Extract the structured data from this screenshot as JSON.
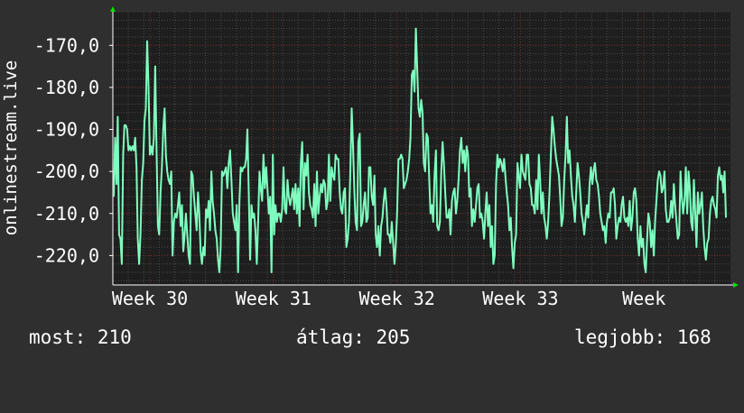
{
  "chart_data": {
    "type": "line",
    "ylabel": "onlinestream.live",
    "ylim": [
      -227,
      -162
    ],
    "yticks": [
      -170,
      -180,
      -190,
      -200,
      -210,
      -220
    ],
    "ytick_labels": [
      "-170,0",
      "-180,0",
      "-190,0",
      "-200,0",
      "-210,0",
      "-220,0"
    ],
    "xticks": [
      {
        "label": "Week 30",
        "at": 0.06
      },
      {
        "label": "Week 31",
        "at": 0.26
      },
      {
        "label": "Week 32",
        "at": 0.46
      },
      {
        "label": "Week 33",
        "at": 0.66
      },
      {
        "label": "Week",
        "at": 0.86
      }
    ],
    "grid": true,
    "series": [
      {
        "color": "#7fffbf",
        "values": [
          -206,
          -192,
          -203,
          -187,
          -215,
          -216,
          -222,
          -196,
          -189,
          -189,
          -190,
          -195,
          -194,
          -195,
          -194,
          -195,
          -192,
          -199,
          -216,
          -222,
          -215,
          -202,
          -198,
          -188,
          -185,
          -169,
          -180,
          -196,
          -194,
          -196,
          -192,
          -175,
          -195,
          -213,
          -215,
          -205,
          -199,
          -190,
          -185,
          -196,
          -200,
          -202,
          -203,
          -200,
          -220,
          -212,
          -210,
          -211,
          -208,
          -205,
          -213,
          -208,
          -219,
          -215,
          -210,
          -215,
          -220,
          -222,
          -200,
          -201,
          -206,
          -210,
          -214,
          -205,
          -210,
          -219,
          -222,
          -218,
          -220,
          -209,
          -211,
          -207,
          -214,
          -200,
          -207,
          -210,
          -214,
          -216,
          -221,
          -224,
          -218,
          -200,
          -201,
          -200,
          -199,
          -204,
          -198,
          -195,
          -202,
          -210,
          -212,
          -214,
          -208,
          -224,
          -207,
          -199,
          -200,
          -199,
          -199,
          -197,
          -190,
          -205,
          -221,
          -208,
          -211,
          -210,
          -214,
          -222,
          -212,
          -200,
          -204,
          -207,
          -196,
          -204,
          -199,
          -204,
          -210,
          -206,
          -224,
          -196,
          -215,
          -208,
          -212,
          -210,
          -210,
          -212,
          -209,
          -199,
          -209,
          -210,
          -202,
          -206,
          -208,
          -206,
          -204,
          -209,
          -203,
          -210,
          -204,
          -213,
          -198,
          -193,
          -209,
          -198,
          -201,
          -196,
          -205,
          -208,
          -209,
          -211,
          -203,
          -213,
          -200,
          -210,
          -206,
          -203,
          -205,
          -202,
          -203,
          -209,
          -207,
          -196,
          -207,
          -199,
          -201,
          -202,
          -196,
          -197,
          -197,
          -205,
          -209,
          -210,
          -205,
          -204,
          -218,
          -216,
          -212,
          -200,
          -185,
          -194,
          -205,
          -212,
          -214,
          -193,
          -191,
          -213,
          -212,
          -208,
          -205,
          -212,
          -211,
          -199,
          -199,
          -206,
          -208,
          -201,
          -215,
          -218,
          -213,
          -220,
          -213,
          -211,
          -207,
          -204,
          -208,
          -215,
          -215,
          -217,
          -212,
          -217,
          -222,
          -217,
          -210,
          -197,
          -197,
          -196,
          -197,
          -204,
          -203,
          -202,
          -200,
          -197,
          -192,
          -177,
          -176,
          -181,
          -166,
          -175,
          -185,
          -187,
          -183,
          -186,
          -198,
          -200,
          -191,
          -192,
          -202,
          -210,
          -208,
          -212,
          -201,
          -195,
          -213,
          -214,
          -212,
          -200,
          -193,
          -198,
          -205,
          -211,
          -211,
          -209,
          -215,
          -207,
          -205,
          -204,
          -210,
          -207,
          -202,
          -195,
          -192,
          -198,
          -195,
          -200,
          -194,
          -196,
          -206,
          -204,
          -213,
          -209,
          -212,
          -208,
          -204,
          -203,
          -211,
          -210,
          -212,
          -216,
          -210,
          -205,
          -213,
          -208,
          -218,
          -213,
          -222,
          -220,
          -203,
          -196,
          -199,
          -197,
          -198,
          -200,
          -197,
          -201,
          -205,
          -208,
          -214,
          -211,
          -218,
          -223,
          -217,
          -215,
          -198,
          -201,
          -204,
          -196,
          -200,
          -201,
          -202,
          -196,
          -196,
          -203,
          -204,
          -208,
          -208,
          -210,
          -202,
          -209,
          -196,
          -202,
          -210,
          -205,
          -211,
          -213,
          -216,
          -212,
          -205,
          -196,
          -187,
          -190,
          -194,
          -197,
          -199,
          -201,
          -206,
          -213,
          -211,
          -202,
          -196,
          -187,
          -198,
          -195,
          -201,
          -206,
          -208,
          -212,
          -205,
          -198,
          -201,
          -205,
          -210,
          -212,
          -215,
          -211,
          -208,
          -211,
          -203,
          -199,
          -203,
          -200,
          -198,
          -202,
          -203,
          -206,
          -210,
          -212,
          -214,
          -213,
          -217,
          -212,
          -210,
          -211,
          -205,
          -205,
          -204,
          -208,
          -216,
          -213,
          -211,
          -212,
          -208,
          -206,
          -211,
          -212,
          -211,
          -213,
          -207,
          -214,
          -211,
          -205,
          -204,
          -207,
          -216,
          -220,
          -213,
          -218,
          -216,
          -222,
          -224,
          -216,
          -210,
          -212,
          -218,
          -214,
          -220,
          -212,
          -207,
          -202,
          -200,
          -201,
          -205,
          -204,
          -200,
          -209,
          -212,
          -212,
          -211,
          -207,
          -211,
          -203,
          -208,
          -212,
          -216,
          -215,
          -200,
          -206,
          -210,
          -207,
          -199,
          -210,
          -200,
          -204,
          -212,
          -214,
          -202,
          -210,
          -218,
          -205,
          -210,
          -208,
          -205,
          -213,
          -218,
          -221,
          -217,
          -216,
          -210,
          -207,
          -206,
          -208,
          -209,
          -211,
          -201,
          -199,
          -202,
          -201,
          -205,
          -200,
          -211
        ]
      }
    ]
  },
  "footer": {
    "now_label": "most:",
    "now_value": "210",
    "avg_label": "átlag:",
    "avg_value": "205",
    "best_label": "legjobb:",
    "best_value": "168"
  }
}
